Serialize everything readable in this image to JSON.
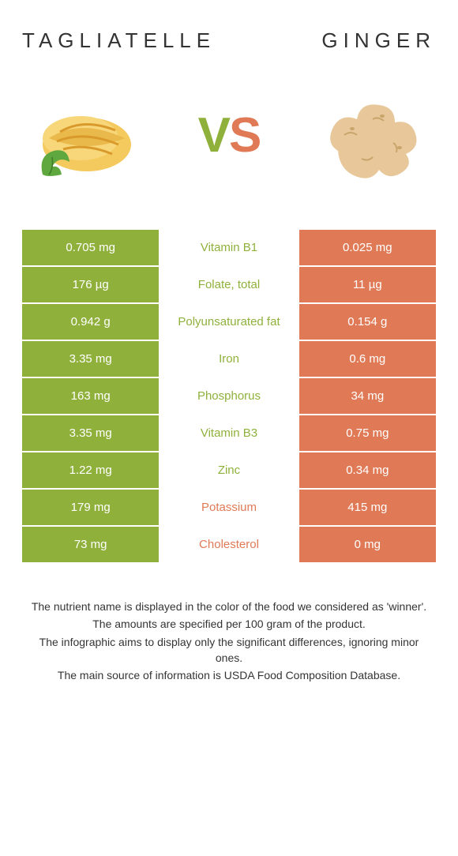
{
  "colors": {
    "left": "#8fb13c",
    "right": "#e07a56",
    "left_text_on_white": "#8fb13c",
    "right_text_on_white": "#e07a56",
    "white": "#ffffff"
  },
  "header": {
    "left_title": "Tagliatelle",
    "right_title": "Ginger"
  },
  "vs": {
    "v": "V",
    "s": "S"
  },
  "rows": [
    {
      "left": "0.705 mg",
      "label": "Vitamin B1",
      "right": "0.025 mg",
      "winner": "left"
    },
    {
      "left": "176 µg",
      "label": "Folate, total",
      "right": "11 µg",
      "winner": "left"
    },
    {
      "left": "0.942 g",
      "label": "Polyunsaturated fat",
      "right": "0.154 g",
      "winner": "left"
    },
    {
      "left": "3.35 mg",
      "label": "Iron",
      "right": "0.6 mg",
      "winner": "left"
    },
    {
      "left": "163 mg",
      "label": "Phosphorus",
      "right": "34 mg",
      "winner": "left"
    },
    {
      "left": "3.35 mg",
      "label": "Vitamin B3",
      "right": "0.75 mg",
      "winner": "left"
    },
    {
      "left": "1.22 mg",
      "label": "Zinc",
      "right": "0.34 mg",
      "winner": "left"
    },
    {
      "left": "179 mg",
      "label": "Potassium",
      "right": "415 mg",
      "winner": "right"
    },
    {
      "left": "73 mg",
      "label": "Cholesterol",
      "right": "0 mg",
      "winner": "right"
    }
  ],
  "footer": {
    "line1": "The nutrient name is displayed in the color of the food we considered as 'winner'.",
    "line2": "The amounts are specified per 100 gram of the product.",
    "line3": "The infographic aims to display only the significant differences, ignoring minor ones.",
    "line4": "The main source of information is USDA Food Composition Database."
  }
}
